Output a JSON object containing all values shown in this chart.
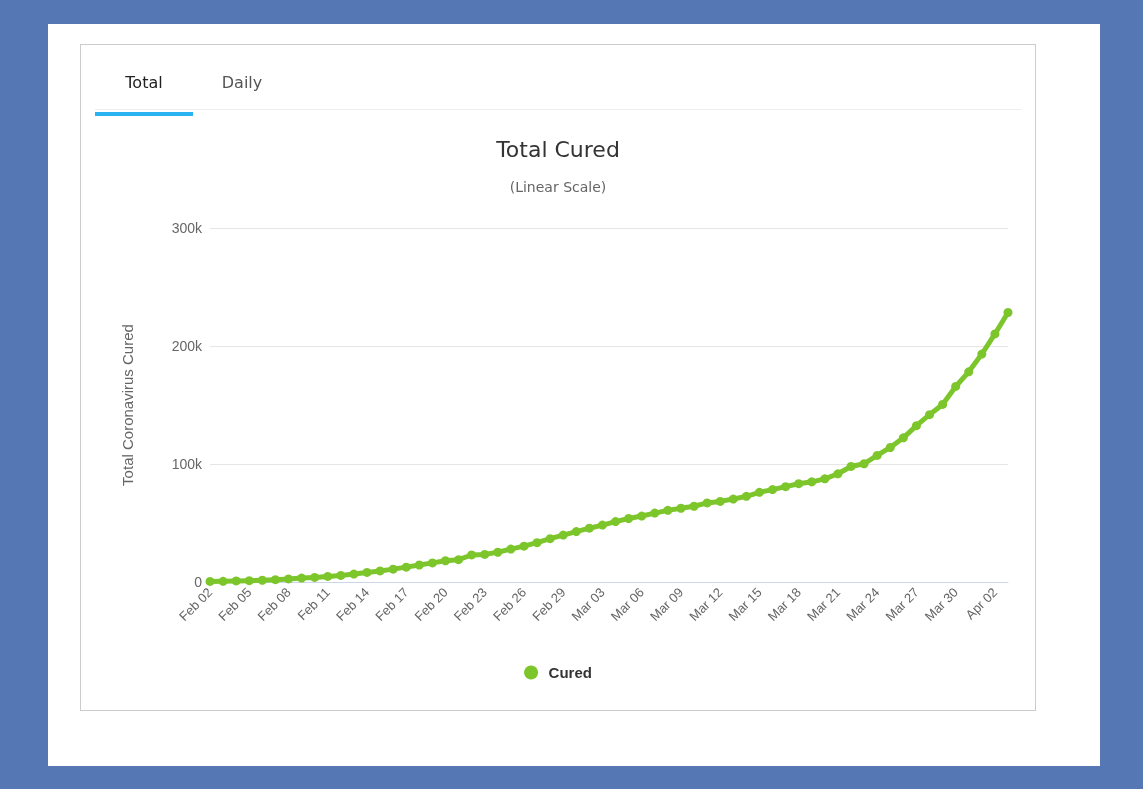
{
  "chart_data": {
    "type": "line",
    "title": "Total Cured",
    "subtitle": "(Linear Scale)",
    "ylabel": "Total Coronavirus Cured",
    "annotations": [
      "Total",
      "Daily"
    ],
    "categories": [
      "Feb 02",
      null,
      null,
      "Feb 05",
      null,
      null,
      "Feb 08",
      null,
      null,
      "Feb 11",
      null,
      null,
      "Feb 14",
      null,
      null,
      "Feb 17",
      null,
      null,
      "Feb 20",
      null,
      null,
      "Feb 23",
      null,
      null,
      "Feb 26",
      null,
      null,
      "Feb 29",
      null,
      null,
      "Mar 03",
      null,
      null,
      "Mar 06",
      null,
      null,
      "Mar 09",
      null,
      null,
      "Mar 12",
      null,
      null,
      "Mar 15",
      null,
      null,
      "Mar 18",
      null,
      null,
      "Mar 21",
      null,
      null,
      "Mar 24",
      null,
      null,
      "Mar 27",
      null,
      null,
      "Mar 30",
      null,
      null,
      "Apr 02",
      null
    ],
    "series": [
      {
        "name": "Cured",
        "color": "#7cc62c",
        "values": [
          500,
          600,
          900,
          1100,
          1500,
          2000,
          2600,
          3300,
          3900,
          4700,
          5600,
          6700,
          8100,
          9400,
          10900,
          12600,
          14400,
          16200,
          18000,
          18900,
          22900,
          23400,
          25200,
          27900,
          30400,
          33300,
          36700,
          39800,
          42700,
          45600,
          48200,
          51200,
          53800,
          55900,
          58400,
          60700,
          62500,
          64200,
          67000,
          68300,
          70300,
          72600,
          76000,
          78300,
          80800,
          83300,
          84900,
          87400,
          91700,
          97900,
          100200,
          107300,
          114000,
          122200,
          132500,
          141800,
          150500,
          165700,
          178100,
          193200,
          210200,
          228400
        ]
      }
    ],
    "ylim": [
      0,
      300000
    ],
    "yticks": [
      {
        "value": 0,
        "label": "0"
      },
      {
        "value": 100000,
        "label": "100k"
      },
      {
        "value": 200000,
        "label": "200k"
      },
      {
        "value": 300000,
        "label": "300k"
      }
    ],
    "grid": "y",
    "legend": "bottom",
    "marker": "circle",
    "line_style": "solid"
  }
}
